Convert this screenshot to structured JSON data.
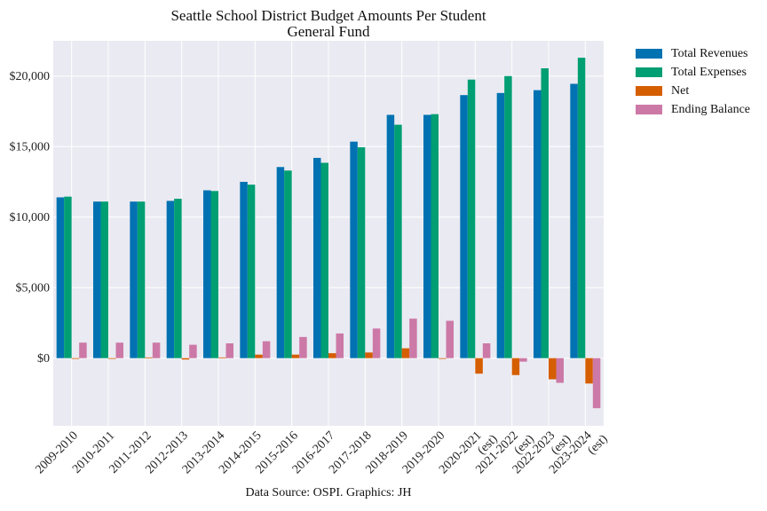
{
  "chart_data": {
    "type": "bar",
    "title": "Seattle School District Budget Amounts Per Student",
    "subtitle": "General Fund",
    "footer": "Data Source: OSPI. Graphics: JH",
    "categories": [
      "2009-2010",
      "2010-2011",
      "2011-2012",
      "2012-2013",
      "2013-2014",
      "2014-2015",
      "2015-2016",
      "2016-2017",
      "2017-2018",
      "2018-2019",
      "2019-2020",
      "2020-2021\n(est)",
      "2021-2022\n(est)",
      "2022-2023\n(est)",
      "2023-2024\n(est)"
    ],
    "series": [
      {
        "name": "Total Revenues",
        "color": "#0072B2",
        "values": [
          11400,
          11100,
          11100,
          11150,
          11900,
          12500,
          13550,
          14200,
          15350,
          17250,
          17250,
          18650,
          18800,
          19000,
          19450
        ]
      },
      {
        "name": "Total Expenses",
        "color": "#009E73",
        "values": [
          11450,
          11100,
          11100,
          11300,
          11850,
          12300,
          13300,
          13850,
          14950,
          16550,
          17300,
          19750,
          20000,
          20550,
          21300
        ]
      },
      {
        "name": "Net",
        "color": "#D55E00",
        "values": [
          -50,
          0,
          50,
          -100,
          50,
          250,
          250,
          350,
          400,
          700,
          -50,
          -1100,
          -1200,
          -1500,
          -1800
        ]
      },
      {
        "name": "Ending Balance",
        "color": "#CC79A7",
        "values": [
          1100,
          1100,
          1100,
          950,
          1050,
          1200,
          1500,
          1750,
          2100,
          2800,
          2650,
          1050,
          -250,
          -1750,
          -3550
        ]
      }
    ],
    "yticks": [
      0,
      5000,
      10000,
      15000,
      20000
    ],
    "ytick_labels": [
      "$0",
      "$5,000",
      "$10,000",
      "$15,000",
      "$20,000"
    ],
    "ylim": [
      -4800,
      22500
    ],
    "grid": true,
    "legend_position": "outside-right"
  }
}
